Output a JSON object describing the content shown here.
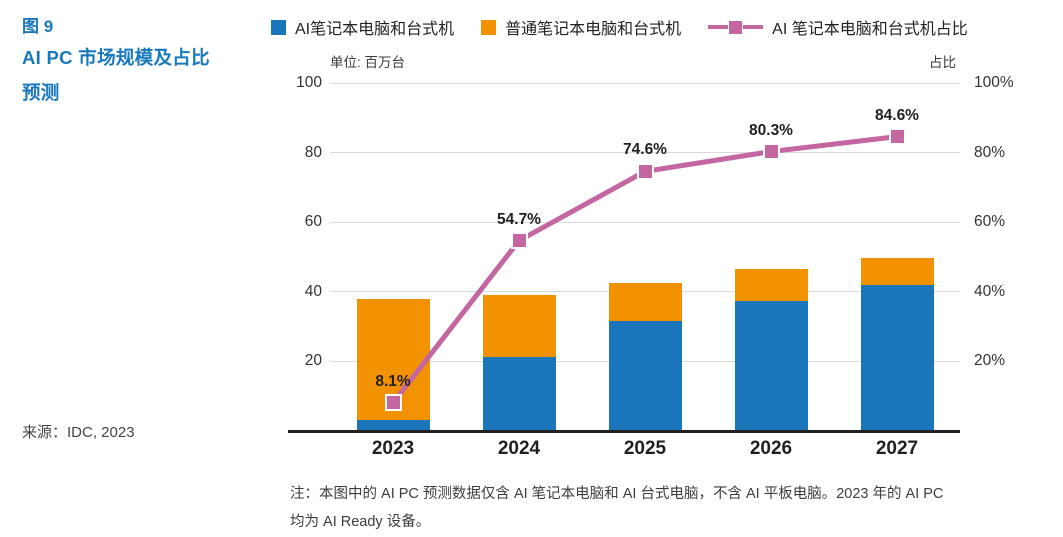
{
  "figure": {
    "label": "图 9",
    "title_line1": "AI PC 市场规模及占比",
    "title_line2": "预测",
    "source": "来源：IDC, 2023"
  },
  "legend": [
    {
      "label": "AI笔记本电脑和台式机",
      "color": "#1b75ba",
      "type": "square"
    },
    {
      "label": "普通笔记本电脑和台式机",
      "color": "#f39200",
      "type": "square"
    },
    {
      "label": "AI 笔记本电脑和台式机占比",
      "color": "#c4669f",
      "type": "line-marker"
    }
  ],
  "axes": {
    "left_unit": "单位: 百万台",
    "right_unit": "占比",
    "left_ticks": [
      100,
      80,
      60,
      40,
      20
    ],
    "right_ticks": [
      "100%",
      "80%",
      "60%",
      "40%",
      "20%"
    ]
  },
  "note": [
    "注：本图中的 AI PC 预测数据仅含 AI 笔记本电脑和 AI 台式电脑，不含 AI 平板电脑。2023 年的 AI PC",
    "均为 AI Ready 设备。"
  ],
  "colors": {
    "ai_bar": "#1b75ba",
    "normal_bar": "#f39200",
    "share_line": "#c4669f",
    "title_blue": "#1878be"
  },
  "chart_data": {
    "type": "bar",
    "subtype": "stacked-bar-with-line",
    "categories": [
      "2023",
      "2024",
      "2025",
      "2026",
      "2027"
    ],
    "series": [
      {
        "name": "AI笔记本电脑和台式机",
        "type": "bar",
        "color": "#1b75ba",
        "values": [
          3.1,
          21.3,
          31.7,
          37.3,
          42.1
        ]
      },
      {
        "name": "普通笔记本电脑和台式机",
        "type": "bar",
        "color": "#f39200",
        "values": [
          34.7,
          17.7,
          10.8,
          9.2,
          7.7
        ]
      },
      {
        "name": "AI 笔记本电脑和台式机占比",
        "type": "line",
        "axis": "right",
        "color": "#c4669f",
        "values_pct": [
          8.1,
          54.7,
          74.6,
          80.3,
          84.6
        ],
        "labels": [
          "8.1%",
          "54.7%",
          "74.6%",
          "80.3%",
          "84.6%"
        ]
      }
    ],
    "title": "AI PC 市场规模及占比预测",
    "xlabel": "",
    "ylabel_left": "单位: 百万台",
    "ylabel_right": "占比",
    "ylim_left": [
      0,
      100
    ],
    "ylim_right_pct": [
      0,
      100
    ],
    "grid": true,
    "legend_position": "top"
  }
}
